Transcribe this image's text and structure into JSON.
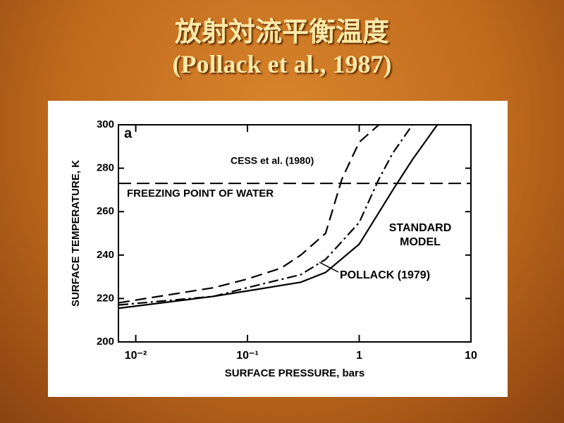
{
  "slide_title": "放射対流平衡温度",
  "slide_subtitle": "(Pollack et al., 1987)",
  "chart_data": {
    "type": "line",
    "panel_label": "a",
    "x_label": "SURFACE PRESSURE, bars",
    "y_label": "SURFACE TEMPERATURE, K",
    "log_x": true,
    "xlim": [
      0.007,
      10
    ],
    "xticks": [
      {
        "value": 0.01,
        "label": "10⁻²"
      },
      {
        "value": 0.1,
        "label": "10⁻¹"
      },
      1,
      10
    ],
    "ylim": [
      200,
      300
    ],
    "yticks": [
      200,
      220,
      240,
      260,
      280,
      300
    ],
    "series": [
      {
        "name": "STANDARD MODEL",
        "color": "#000000",
        "line_style": "solid",
        "x": [
          0.007,
          0.05,
          0.1,
          0.3,
          0.5,
          1,
          2,
          3,
          5
        ],
        "values": [
          215.5,
          221,
          223.5,
          227.5,
          232,
          245,
          270,
          284,
          300
        ]
      },
      {
        "name": "POLLACK (1979)",
        "color": "#000000",
        "line_style": "dashdot",
        "x": [
          0.007,
          0.05,
          0.1,
          0.3,
          0.5,
          1,
          1.5,
          2,
          3
        ],
        "values": [
          217,
          221,
          225,
          231,
          238,
          255,
          275,
          287,
          300
        ]
      },
      {
        "name": "CESS et al. (1980)",
        "color": "#000000",
        "line_style": "dashed",
        "x": [
          0.007,
          0.05,
          0.1,
          0.2,
          0.3,
          0.5,
          0.7,
          1,
          1.5
        ],
        "values": [
          218,
          225,
          229,
          234,
          240,
          250,
          275,
          292,
          300
        ]
      }
    ],
    "reference_lines": [
      {
        "y": 273,
        "label": "FREEZING POINT OF WATER"
      }
    ]
  }
}
